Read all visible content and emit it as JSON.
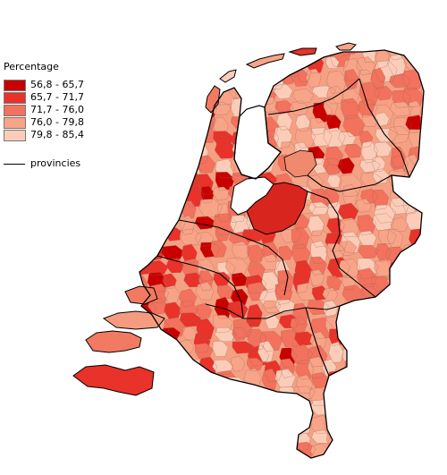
{
  "legend": {
    "title": "Percentage",
    "classes": [
      {
        "label": "56,8 - 65,7",
        "color": "#c80000"
      },
      {
        "label": "65,7 - 71,7",
        "color": "#e8322a"
      },
      {
        "label": "71,7 - 76,0",
        "color": "#f2725d"
      },
      {
        "label": "76,0 - 79,8",
        "color": "#f7a488"
      },
      {
        "label": "79,8 - 85,4",
        "color": "#fbcdb9"
      }
    ],
    "boundary_label": "provincies"
  },
  "colors": {
    "background": "#ffffff",
    "boundary": "#000000",
    "municipality_line": "#8a5a4a",
    "water": "#ffffff"
  }
}
